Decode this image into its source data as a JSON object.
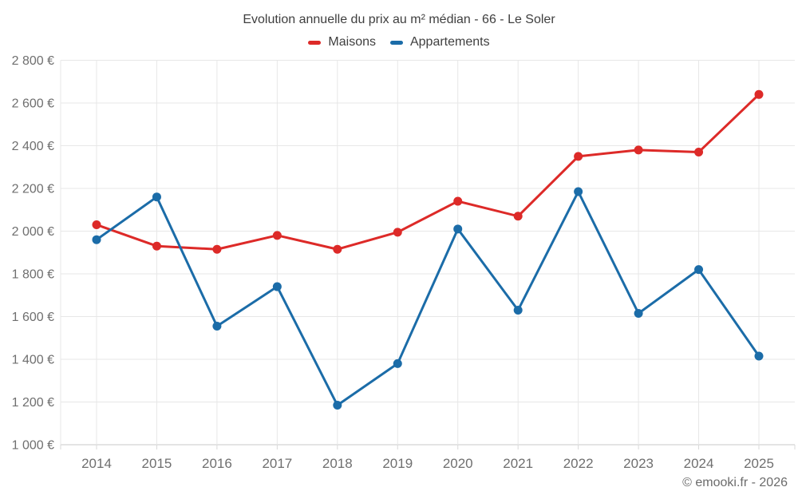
{
  "title": "Evolution annuelle du prix au m² médian - 66 - Le Soler",
  "legend": {
    "items": [
      {
        "label": "Maisons",
        "color": "#dd2a28"
      },
      {
        "label": "Appartements",
        "color": "#1b6ca8"
      }
    ]
  },
  "copyright": "© emooki.fr - 2026",
  "chart_data": {
    "type": "line",
    "title": "Evolution annuelle du prix au m² médian - 66 - Le Soler",
    "x": [
      2014,
      2015,
      2016,
      2017,
      2018,
      2019,
      2020,
      2021,
      2022,
      2023,
      2024,
      2025
    ],
    "series": [
      {
        "name": "Maisons",
        "color": "#dd2a28",
        "values": [
          2030,
          1930,
          1915,
          1980,
          1915,
          1995,
          2140,
          2070,
          2350,
          2380,
          2370,
          2640
        ]
      },
      {
        "name": "Appartements",
        "color": "#1b6ca8",
        "values": [
          1960,
          2160,
          1555,
          1740,
          1185,
          1380,
          2010,
          1630,
          2185,
          1615,
          1820,
          1415
        ]
      }
    ],
    "xlabel": "",
    "ylabel": "",
    "ylim": [
      1000,
      2800
    ],
    "ytick_step": 200,
    "ytick_suffix": " €",
    "grid": true,
    "legend_position": "top",
    "axis_text_color": "#6f6f6f",
    "gridline_color": "#e7e7e7",
    "axis_line_color": "#c8c8c8",
    "tick_color": "#d9d9d9"
  }
}
